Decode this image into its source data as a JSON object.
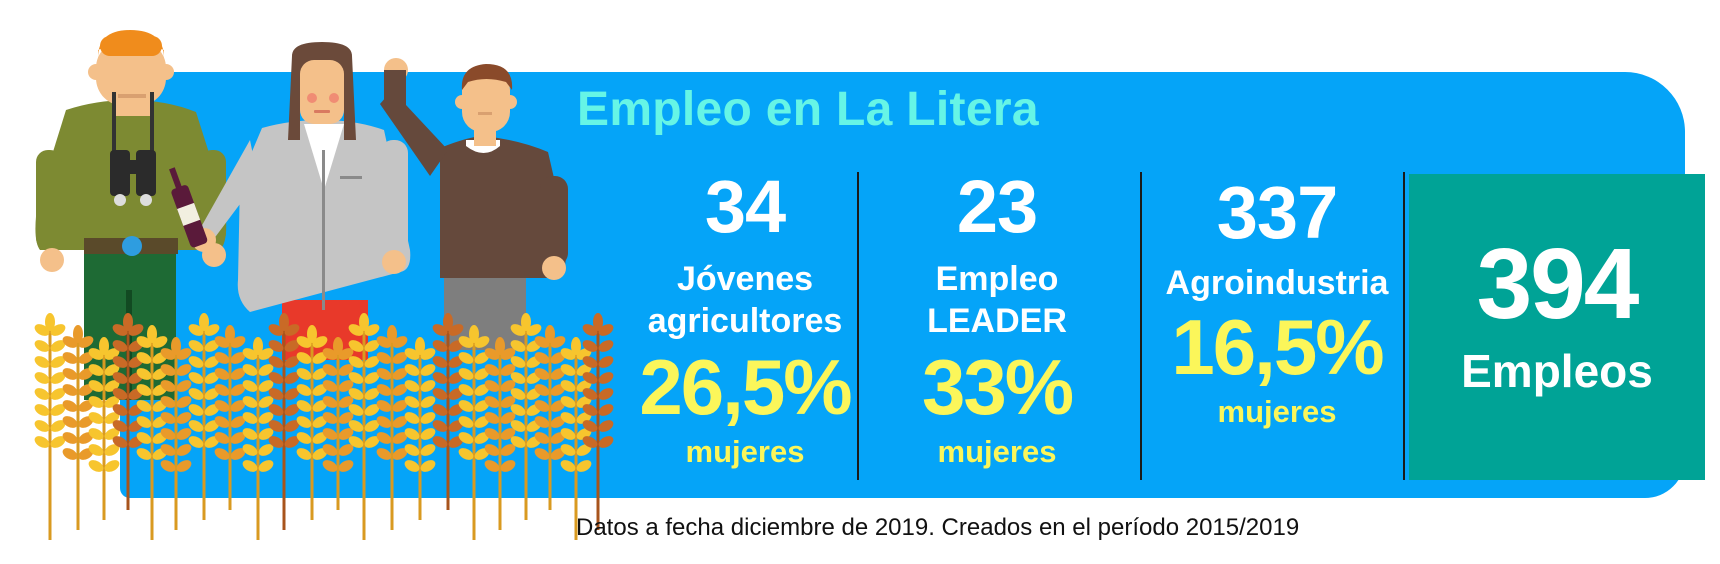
{
  "title": "Empleo en La Litera",
  "stats": [
    {
      "number": "34",
      "label_line1": "Jóvenes",
      "label_line2": "agricultores",
      "percent": "26,5%",
      "percent_label": "mujeres"
    },
    {
      "number": "23",
      "label_line1": "Empleo",
      "label_line2": "LEADER",
      "percent": "33%",
      "percent_label": "mujeres"
    },
    {
      "number": "337",
      "label_line1": "Agroindustria",
      "percent": "16,5%",
      "percent_label": "mujeres"
    }
  ],
  "total": {
    "number": "394",
    "label": "Empleos"
  },
  "footnote": "Datos a fecha diciembre de 2019. Creados en el período 2015/2019",
  "colors": {
    "panel": "#05a4f8",
    "title": "#66f5e6",
    "percent": "#fbf65a",
    "total_box": "#00a396",
    "text": "#ffffff"
  },
  "illustration": {
    "figures": [
      "farmer-with-binoculars",
      "woman-with-wine-bottle",
      "man-waving"
    ],
    "foreground": "wheat-field"
  }
}
